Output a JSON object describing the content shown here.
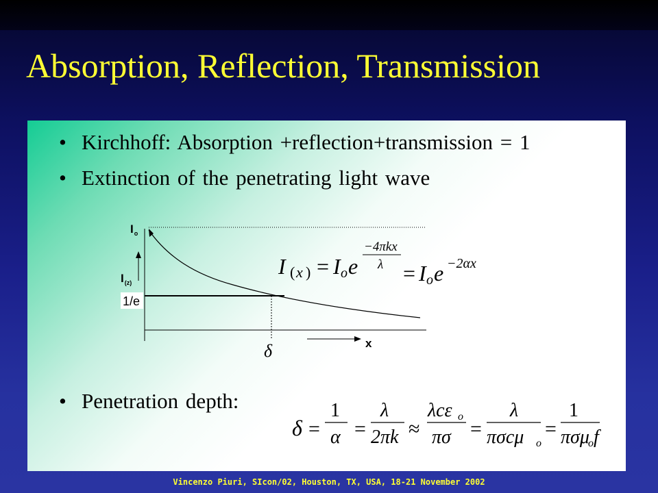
{
  "slide": {
    "title": "Absorption, Reflection, Transmission",
    "bullets": [
      "Kirchhoff: Absorption +reflection+transmission = 1",
      "Extinction of the penetrating light wave",
      "Penetration depth:"
    ],
    "bullet_symbol": "•",
    "footer": "Vincenzo Piuri, SIcon/02, Houston, TX, USA, 18-21 November 2002"
  },
  "figure": {
    "i0_label": "I",
    "i0_sub": "o",
    "iz_label": "I",
    "iz_sub": "(z)",
    "one_over_e_label": "1/e",
    "x_label": "x",
    "delta_label": "δ"
  },
  "colors": {
    "title": "#ffff33",
    "footer": "#ffff33",
    "background": "#1a1f8a",
    "content_accent": "#14cc94"
  }
}
